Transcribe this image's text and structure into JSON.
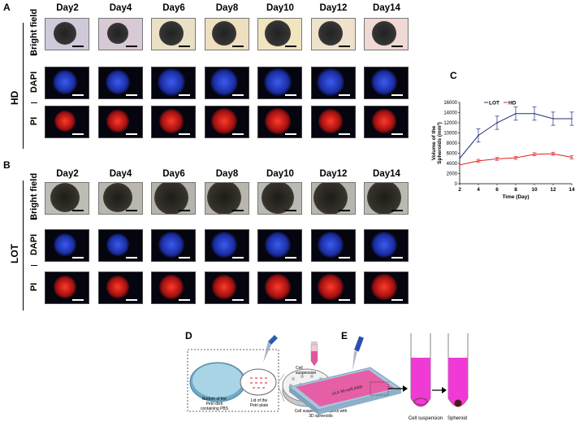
{
  "panels": {
    "A": {
      "label": "A",
      "group": "HD",
      "rows": [
        "Bright field",
        "DAPI",
        "PI"
      ],
      "days": [
        "Day2",
        "Day4",
        "Day6",
        "Day8",
        "Day10",
        "Day12",
        "Day14"
      ]
    },
    "B": {
      "label": "B",
      "group": "LOT",
      "rows": [
        "Bright field",
        "DAPI",
        "PI"
      ],
      "days": [
        "Day2",
        "Day4",
        "Day6",
        "Day8",
        "Day10",
        "Day12",
        "Day14"
      ]
    },
    "C": {
      "label": "C"
    },
    "D": {
      "label": "D",
      "texts": {
        "bottom": "Bottom of the Petri dish containing PBS",
        "lid": "Lid of the Petri plate",
        "droplets": "Cell suspension droplets with 3D spheroids"
      }
    },
    "E": {
      "label": "E",
      "texts": {
        "cell_susp_tube": "Cell suspension",
        "plate": "ULA 96-well plate",
        "cell_susp": "Cell suspension",
        "spheroid": "Spheroid"
      }
    }
  },
  "colors": {
    "lot": "#1f2f7a",
    "hd": "#e02020",
    "pink": "#e845c8"
  },
  "chart_data": {
    "type": "line",
    "x": [
      2,
      4,
      6,
      8,
      10,
      12,
      14
    ],
    "series": [
      {
        "name": "LOT",
        "values": [
          5000,
          9500,
          12000,
          13800,
          13800,
          12800,
          12800
        ],
        "errors": [
          0,
          1300,
          1300,
          1300,
          1300,
          1300,
          1300
        ],
        "color": "#1f2f7a"
      },
      {
        "name": "HD",
        "values": [
          3700,
          4500,
          4900,
          5100,
          5800,
          5900,
          5200
        ],
        "errors": [
          0,
          300,
          300,
          300,
          300,
          300,
          300
        ],
        "color": "#e02020"
      }
    ],
    "xlabel": "Time (Day)",
    "ylabel": "Volume of the Spheroids (mm³)",
    "ylabel_line1": "Volume of the",
    "ylabel_line2": "Spheroids (mm³)",
    "xticks": [
      "2",
      "4",
      "6",
      "8",
      "10",
      "12",
      "14"
    ],
    "yticks": [
      "0",
      "2000",
      "4000",
      "6000",
      "8000",
      "10000",
      "12000",
      "14000",
      "16000"
    ],
    "xlim": [
      2,
      14
    ],
    "ylim": [
      0,
      16000
    ],
    "legend_position": "top-left",
    "grid": false
  }
}
